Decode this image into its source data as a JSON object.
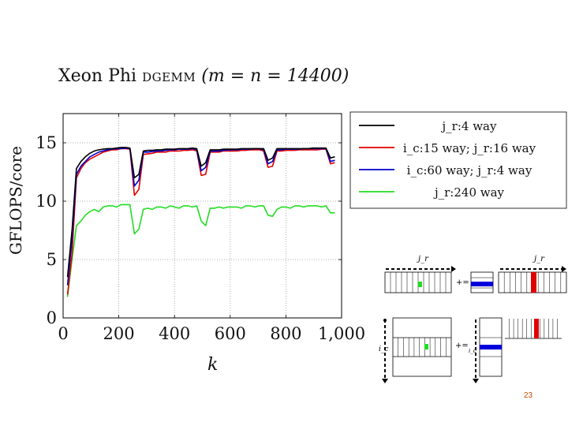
{
  "slide": {
    "title_prefix": "Xeon Phi ",
    "title_kernel": "dgemm",
    "title_params": "(m = n = 14400)",
    "page_number": "23"
  },
  "chart_data": {
    "type": "line",
    "title": "Xeon Phi dgemm (m = n = 14400)",
    "xlabel": "k",
    "ylabel": "GFLOPS/core",
    "xlim": [
      0,
      1000
    ],
    "ylim": [
      0,
      17.5
    ],
    "xticks": [
      0,
      200,
      400,
      600,
      800,
      1000
    ],
    "xtick_labels": [
      "0",
      "200",
      "400",
      "600",
      "800",
      "1,000"
    ],
    "yticks": [
      0,
      5,
      10,
      15
    ],
    "ytick_labels": [
      "0",
      "5",
      "10",
      "15"
    ],
    "grid": true,
    "legend_position": "top-right",
    "x": [
      16,
      32,
      48,
      64,
      80,
      96,
      112,
      128,
      144,
      160,
      176,
      192,
      208,
      224,
      240,
      256,
      272,
      288,
      304,
      320,
      336,
      352,
      368,
      384,
      400,
      416,
      432,
      448,
      464,
      480,
      496,
      512,
      528,
      544,
      560,
      576,
      592,
      608,
      624,
      640,
      656,
      672,
      688,
      704,
      720,
      736,
      752,
      768,
      784,
      800,
      816,
      832,
      848,
      864,
      880,
      896,
      912,
      928,
      944,
      960,
      976
    ],
    "series": [
      {
        "name": "j_r:4 way",
        "color": "#000000",
        "values": [
          3.5,
          7.5,
          12.8,
          13.4,
          13.8,
          14.1,
          14.3,
          14.4,
          14.45,
          14.5,
          14.5,
          14.55,
          14.6,
          14.6,
          14.55,
          12.0,
          12.3,
          14.3,
          14.35,
          14.35,
          14.4,
          14.4,
          14.45,
          14.45,
          14.45,
          14.5,
          14.5,
          14.5,
          14.55,
          14.5,
          13.0,
          13.3,
          14.4,
          14.4,
          14.4,
          14.45,
          14.45,
          14.45,
          14.45,
          14.5,
          14.5,
          14.5,
          14.5,
          14.5,
          14.5,
          13.5,
          13.7,
          14.5,
          14.5,
          14.5,
          14.5,
          14.5,
          14.5,
          14.5,
          14.5,
          14.55,
          14.55,
          14.55,
          14.55,
          13.7,
          13.8
        ]
      },
      {
        "name": "i_c:15 way; j_r:16 way",
        "color": "#e00000",
        "values": [
          2.0,
          5.5,
          12.0,
          12.8,
          13.3,
          13.6,
          13.8,
          14.0,
          14.2,
          14.3,
          14.4,
          14.4,
          14.5,
          14.5,
          14.45,
          10.5,
          11.0,
          14.0,
          14.05,
          14.1,
          14.2,
          14.2,
          14.2,
          14.3,
          14.3,
          14.3,
          14.35,
          14.35,
          14.4,
          14.3,
          12.2,
          12.3,
          14.2,
          14.2,
          14.2,
          14.3,
          14.3,
          14.3,
          14.3,
          14.35,
          14.35,
          14.4,
          14.4,
          14.4,
          14.3,
          12.9,
          13.0,
          14.3,
          14.3,
          14.35,
          14.35,
          14.35,
          14.4,
          14.4,
          14.4,
          14.4,
          14.4,
          14.45,
          14.45,
          13.2,
          13.3
        ]
      },
      {
        "name": "i_c:60 way; j_r:4 way",
        "color": "#0000cc",
        "values": [
          2.8,
          6.8,
          12.3,
          13.0,
          13.4,
          13.8,
          14.0,
          14.2,
          14.3,
          14.4,
          14.45,
          14.5,
          14.5,
          14.55,
          14.5,
          11.3,
          11.8,
          14.2,
          14.2,
          14.25,
          14.3,
          14.3,
          14.35,
          14.4,
          14.4,
          14.45,
          14.45,
          14.45,
          14.5,
          14.4,
          12.6,
          12.9,
          14.3,
          14.3,
          14.3,
          14.35,
          14.4,
          14.4,
          14.4,
          14.45,
          14.45,
          14.45,
          14.5,
          14.5,
          14.4,
          13.2,
          13.4,
          14.4,
          14.4,
          14.45,
          14.45,
          14.45,
          14.45,
          14.5,
          14.5,
          14.5,
          14.5,
          14.5,
          14.5,
          13.4,
          13.5
        ]
      },
      {
        "name": "j_r:240 way",
        "color": "#22dd22",
        "values": [
          1.8,
          5.0,
          7.9,
          8.3,
          8.8,
          9.1,
          9.3,
          9.1,
          9.5,
          9.6,
          9.6,
          9.5,
          9.7,
          9.7,
          9.7,
          7.2,
          7.6,
          9.3,
          9.4,
          9.3,
          9.5,
          9.5,
          9.4,
          9.6,
          9.5,
          9.4,
          9.6,
          9.6,
          9.5,
          9.6,
          8.3,
          7.9,
          9.4,
          9.4,
          9.5,
          9.4,
          9.5,
          9.5,
          9.5,
          9.4,
          9.6,
          9.6,
          9.5,
          9.6,
          9.6,
          8.8,
          8.7,
          9.3,
          9.5,
          9.5,
          9.4,
          9.6,
          9.6,
          9.5,
          9.6,
          9.6,
          9.6,
          9.5,
          9.6,
          9.0,
          9.0
        ]
      }
    ]
  },
  "diagram": {
    "top_left_label": "j_r",
    "top_right_label": "j_r",
    "top_op": "+=",
    "bottom_left_label": "i_c",
    "bottom_op": "+=",
    "bottom_op_sub": "i_c"
  }
}
